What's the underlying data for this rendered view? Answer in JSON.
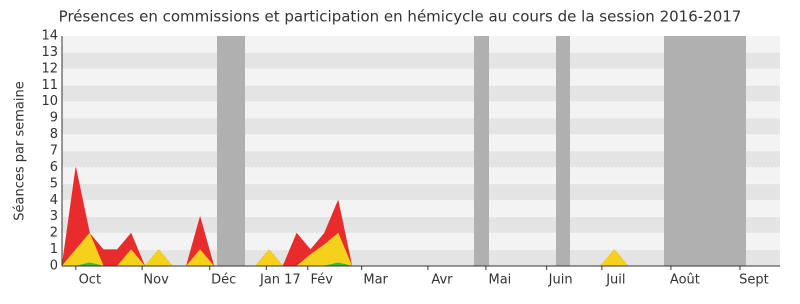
{
  "chart_data": {
    "type": "area",
    "title": "Présences en commissions et participation en hémicycle au cours de la session 2016-2017",
    "y_label": "Séances par semaine",
    "x": [
      0,
      1,
      2,
      3,
      4,
      5,
      6,
      7,
      8,
      9,
      10,
      11,
      12,
      13,
      14,
      15,
      16,
      17,
      18,
      19,
      20,
      21,
      22,
      23,
      24,
      25,
      26,
      27,
      28,
      29,
      30,
      31,
      32,
      33,
      34,
      35,
      36,
      37,
      38,
      39,
      40,
      41,
      42,
      43,
      44,
      45,
      46,
      47,
      48,
      49,
      50,
      51,
      52
    ],
    "series": [
      {
        "color": "#e82b2b",
        "values": [
          0,
          6,
          2,
          1,
          1,
          2,
          0,
          1,
          0,
          0,
          3,
          0,
          0,
          0,
          0,
          1,
          0,
          2,
          1,
          2,
          4,
          0,
          0,
          0,
          0,
          0,
          0,
          0,
          0,
          0,
          0,
          0,
          0,
          0,
          0,
          0,
          0,
          0,
          0,
          0,
          1,
          0,
          0,
          0,
          0,
          0,
          0,
          0,
          0,
          0,
          0,
          0,
          0
        ]
      },
      {
        "color": "#f5d11c",
        "values": [
          0,
          1,
          2,
          0,
          0,
          1,
          0,
          1,
          0,
          0,
          1,
          0,
          0,
          0,
          0,
          1,
          0,
          0,
          0.7,
          1.3,
          2,
          0,
          0,
          0,
          0,
          0,
          0,
          0,
          0,
          0,
          0,
          0,
          0,
          0,
          0,
          0,
          0,
          0,
          0,
          0,
          1,
          0,
          0,
          0,
          0,
          0,
          0,
          0,
          0,
          0,
          0,
          0,
          0
        ]
      },
      {
        "color": "#3cb83c",
        "values": [
          0,
          0,
          0.2,
          0,
          0,
          0,
          0,
          0,
          0,
          0,
          0,
          0,
          0,
          0,
          0,
          0,
          0,
          0,
          0,
          0,
          0.2,
          0,
          0,
          0,
          0,
          0,
          0,
          0,
          0,
          0,
          0,
          0,
          0,
          0,
          0,
          0,
          0,
          0,
          0,
          0,
          0,
          0,
          0,
          0,
          0,
          0,
          0,
          0,
          0,
          0,
          0,
          0,
          0
        ]
      }
    ],
    "xlim": [
      0,
      52
    ],
    "xticks": [
      {
        "value": 1,
        "label": "Oct"
      },
      {
        "value": 5.8,
        "label": "Nov"
      },
      {
        "value": 10.7,
        "label": "Déc"
      },
      {
        "value": 14.8,
        "label": "Jan 17"
      },
      {
        "value": 17.8,
        "label": "Fév"
      },
      {
        "value": 21.7,
        "label": "Mar"
      },
      {
        "value": 26.5,
        "label": "Avr"
      },
      {
        "value": 30.7,
        "label": "Mai"
      },
      {
        "value": 35.1,
        "label": "Juin"
      },
      {
        "value": 39.1,
        "label": "Juil"
      },
      {
        "value": 44.1,
        "label": "Août"
      },
      {
        "value": 49.1,
        "label": "Sept"
      }
    ],
    "ylim": [
      0,
      14
    ],
    "yticks": [
      0,
      1,
      2,
      3,
      4,
      5,
      6,
      7,
      8,
      9,
      10,
      11,
      12,
      13,
      14
    ],
    "grid": true
  }
}
